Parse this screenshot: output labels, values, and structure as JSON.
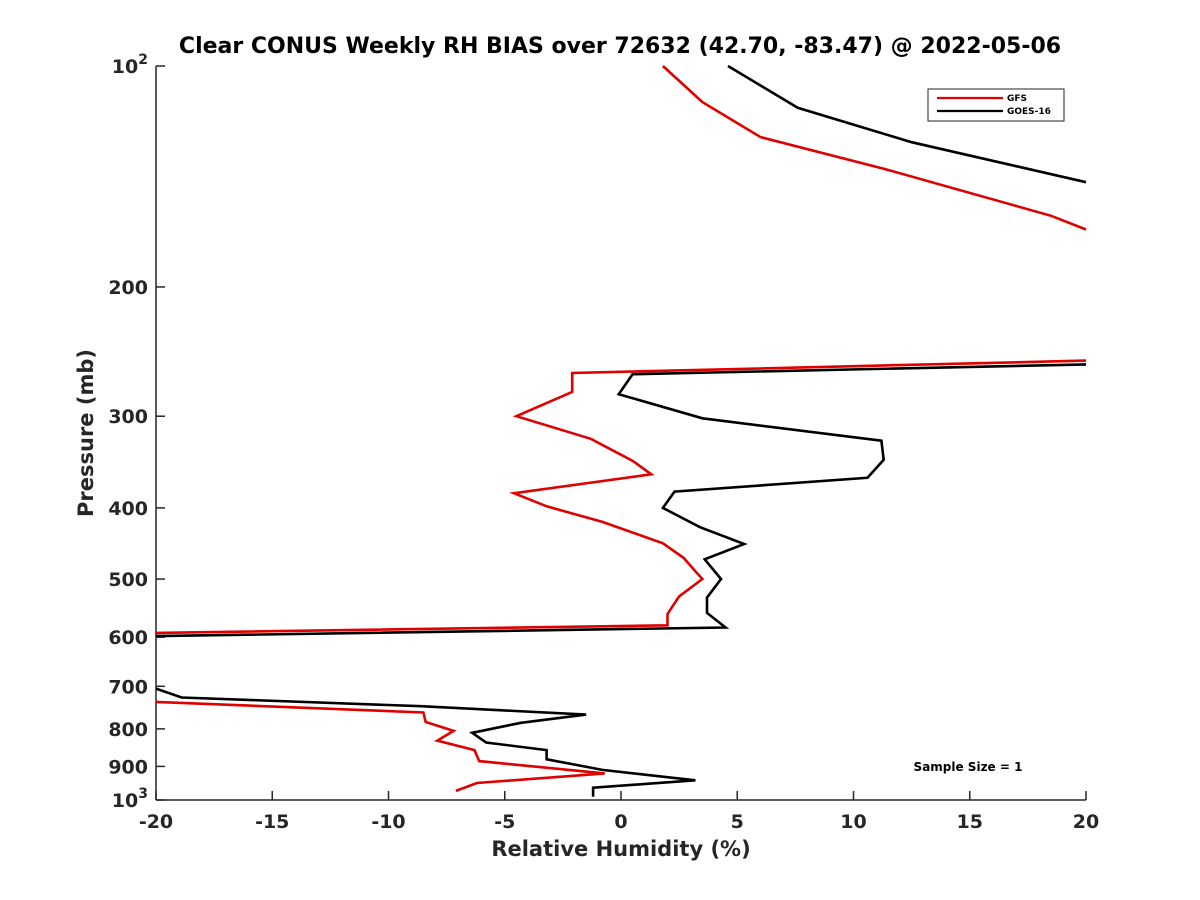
{
  "chart_data": {
    "type": "line",
    "title": "Clear CONUS Weekly RH BIAS over 72632 (42.70, -83.47) @ 2022-05-06",
    "xlabel": "Relative Humidity (%)",
    "ylabel": "Pressure (mb)",
    "xlim": [
      -20,
      20
    ],
    "ylim": [
      100,
      1000
    ],
    "y_scale": "log",
    "y_reversed": true,
    "grid": false,
    "legend_position": "top-right",
    "x_ticks": [
      -20,
      -15,
      -10,
      -5,
      0,
      5,
      10,
      15,
      20
    ],
    "x_tick_labels": [
      "-20",
      "-15",
      "-10",
      "-5",
      "0",
      "5",
      "10",
      "15",
      "20"
    ],
    "y_ticks": [
      100,
      200,
      300,
      400,
      500,
      600,
      700,
      800,
      900,
      1000
    ],
    "y_tick_labels": [
      {
        "base": "10",
        "exp": "2"
      },
      {
        "base": "200",
        "exp": ""
      },
      {
        "base": "300",
        "exp": ""
      },
      {
        "base": "400",
        "exp": ""
      },
      {
        "base": "500",
        "exp": ""
      },
      {
        "base": "600",
        "exp": ""
      },
      {
        "base": "700",
        "exp": ""
      },
      {
        "base": "800",
        "exp": ""
      },
      {
        "base": "900",
        "exp": ""
      },
      {
        "base": "10",
        "exp": "3"
      }
    ],
    "annotation": "Sample Size = 1",
    "series": [
      {
        "name": "GFS",
        "color": "#e00000",
        "points": [
          [
            1.8,
            100
          ],
          [
            3.5,
            112
          ],
          [
            6,
            125
          ],
          [
            11.3,
            138
          ],
          [
            18.5,
            160
          ],
          [
            20,
            167
          ],
          [
            null,
            null
          ],
          [
            20,
            252
          ],
          [
            -2.1,
            262
          ],
          [
            -2.1,
            278
          ],
          [
            -4.5,
            300
          ],
          [
            -1.3,
            322
          ],
          [
            0.5,
            345
          ],
          [
            1.3,
            360
          ],
          [
            -4.6,
            382
          ],
          [
            -3.2,
            398
          ],
          [
            -0.8,
            418
          ],
          [
            1.8,
            447
          ],
          [
            2.7,
            468
          ],
          [
            3.2,
            488
          ],
          [
            3.5,
            500
          ],
          [
            2.5,
            528
          ],
          [
            2.0,
            558
          ],
          [
            2.0,
            578
          ],
          [
            -20,
            592
          ],
          [
            null,
            null
          ],
          [
            -20,
            735
          ],
          [
            -8.5,
            760
          ],
          [
            -8.4,
            783
          ],
          [
            -7.2,
            805
          ],
          [
            -7.9,
            830
          ],
          [
            -6.3,
            855
          ],
          [
            -6.1,
            885
          ],
          [
            -0.7,
            920
          ],
          [
            -6.2,
            948
          ],
          [
            -7.1,
            972
          ]
        ]
      },
      {
        "name": "GOES-16",
        "color": "#000000",
        "points": [
          [
            4.6,
            100
          ],
          [
            7.6,
            114
          ],
          [
            12.5,
            127
          ],
          [
            20,
            144
          ],
          [
            null,
            null
          ],
          [
            20,
            255
          ],
          [
            0.5,
            263
          ],
          [
            -0.1,
            280
          ],
          [
            3.5,
            302
          ],
          [
            11.2,
            324
          ],
          [
            11.3,
            344
          ],
          [
            10.6,
            364
          ],
          [
            2.3,
            380
          ],
          [
            1.8,
            400
          ],
          [
            3.4,
            425
          ],
          [
            5.3,
            448
          ],
          [
            3.6,
            470
          ],
          [
            4.3,
            500
          ],
          [
            3.7,
            530
          ],
          [
            3.7,
            556
          ],
          [
            4.5,
            582
          ],
          [
            -20,
            598
          ],
          [
            null,
            null
          ],
          [
            -20,
            705
          ],
          [
            -18.9,
            725
          ],
          [
            -8.6,
            745
          ],
          [
            -1.5,
            765
          ],
          [
            -4.3,
            785
          ],
          [
            -6.4,
            810
          ],
          [
            -5.8,
            835
          ],
          [
            -3.2,
            855
          ],
          [
            -3.2,
            880
          ],
          [
            -0.8,
            910
          ],
          [
            3.2,
            940
          ],
          [
            -1.2,
            962
          ],
          [
            -1.2,
            990
          ]
        ]
      }
    ]
  }
}
